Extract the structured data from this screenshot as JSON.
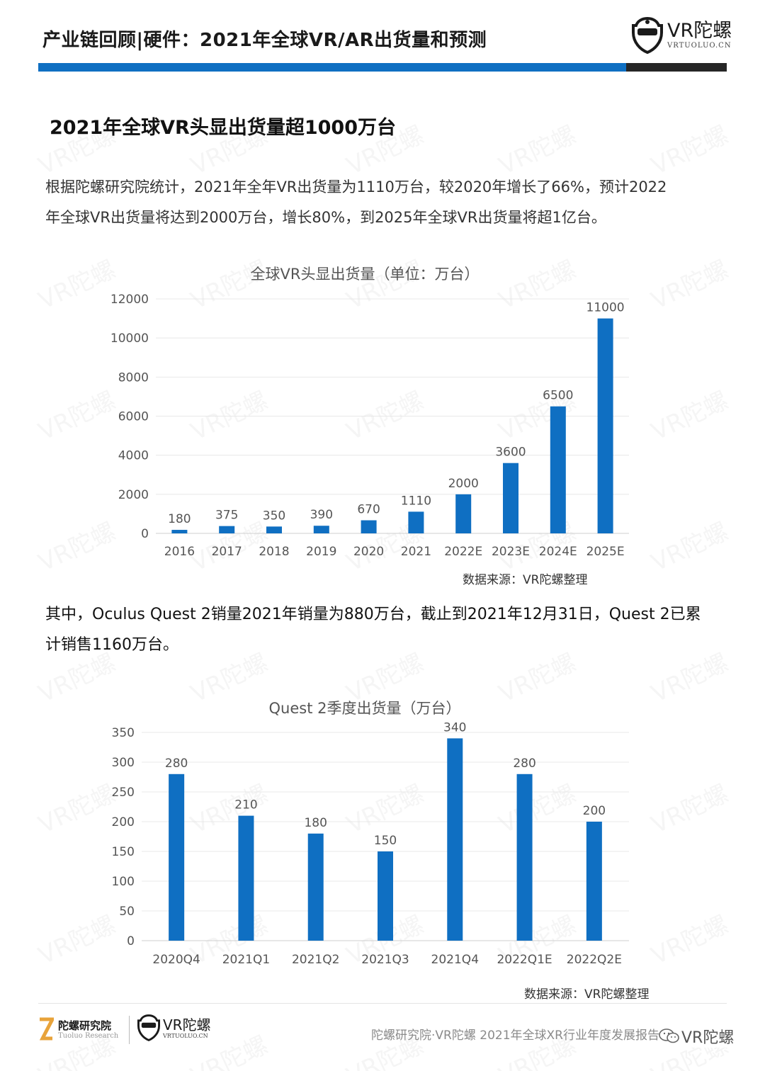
{
  "header": {
    "title": "产业链回顾|硬件：2021年全球VR/AR出货量和预测",
    "logo_main": "VR陀螺",
    "logo_sub": "VRTUOLUO.CN"
  },
  "section": {
    "title": "2021年全球VR头显出货量超1000万台",
    "paragraph1_line1": "根据陀螺研究院统计，2021年全年VR出货量为1110万台，较2020年增长了66%，预计2022",
    "paragraph1_line2": "年全球VR出货量将达到2000万台，增长80%，到2025年全球VR出货量将超1亿台。",
    "paragraph2_line1": "其中，Oculus Quest 2销量2021年销量为880万台，截止到2021年12月31日，Quest 2已累",
    "paragraph2_line2": "计销售1160万台。"
  },
  "chart_data": [
    {
      "type": "bar",
      "title": "全球VR头显出货量（单位：万台）",
      "categories": [
        "2016",
        "2017",
        "2018",
        "2019",
        "2020",
        "2021",
        "2022E",
        "2023E",
        "2024E",
        "2025E"
      ],
      "values": [
        180,
        375,
        350,
        390,
        670,
        1110,
        2000,
        3600,
        6500,
        11000
      ],
      "ylim": [
        0,
        12000
      ],
      "yticks": [
        0,
        2000,
        4000,
        6000,
        8000,
        10000,
        12000
      ],
      "color": "#0f6fc2",
      "grid": true,
      "source": "数据来源：VR陀螺整理"
    },
    {
      "type": "bar",
      "title": "Quest 2季度出货量（万台）",
      "categories": [
        "2020Q4",
        "2021Q1",
        "2021Q2",
        "2021Q3",
        "2021Q4",
        "2022Q1E",
        "2022Q2E"
      ],
      "values": [
        280,
        210,
        180,
        150,
        340,
        280,
        200
      ],
      "ylim": [
        0,
        350
      ],
      "yticks": [
        0,
        50,
        100,
        150,
        200,
        250,
        300,
        350
      ],
      "color": "#0f6fc2",
      "grid": true,
      "source": "数据来源：VR陀螺整理"
    }
  ],
  "footer": {
    "brand1_main": "陀螺研究院",
    "brand1_sub": "Tuoluo Research",
    "brand2_main": "VR陀螺",
    "brand2_sub": "VRTUOLUO.CN",
    "report_text": "陀螺研究院·VR陀螺 2021年全球XR行业年度发展报告",
    "wechat_label": "VR陀螺"
  },
  "watermark": "VR陀螺"
}
